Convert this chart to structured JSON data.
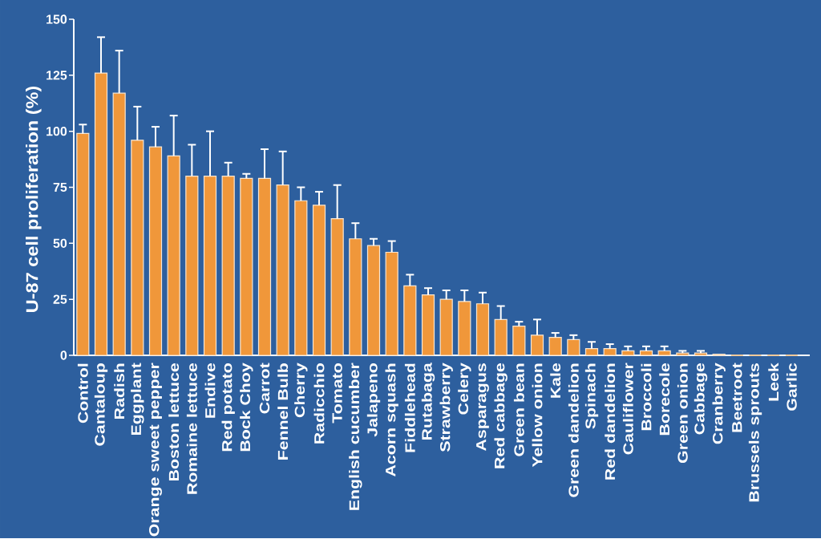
{
  "chart_data": {
    "type": "bar",
    "ylabel": "U-87 cell proliferation (%)",
    "categories": [
      "Control",
      "Cantaloup",
      "Radish",
      "Eggplant",
      "Orange sweet pepper",
      "Boston lettuce",
      "Romaine lettuce",
      "Endive",
      "Red potato",
      "Bock Choy",
      "Carrot",
      "Fennel Bulb",
      "Cherry",
      "Radicchio",
      "Tomato",
      "English cucumber",
      "Jalapeno",
      "Acorn squash",
      "Fiddlehead",
      "Rutabaga",
      "Strawberry",
      "Celery",
      "Asparagus",
      "Red cabbage",
      "Green bean",
      "Yellow onion",
      "Kale",
      "Green dandelion",
      "Spinach",
      "Red dandelion",
      "Cauliflower",
      "Broccoli",
      "Borecole",
      "Green onion",
      "Cabbage",
      "Cranberry",
      "Beetroot",
      "Brussels sprouts",
      "Leek",
      "Garlic"
    ],
    "values": [
      99,
      126,
      117,
      96,
      93,
      89,
      80,
      80,
      80,
      79,
      79,
      76,
      69,
      67,
      61,
      52,
      49,
      46,
      31,
      27,
      25,
      24,
      23,
      16,
      13,
      9,
      8,
      7,
      3,
      3,
      2,
      2,
      2,
      1,
      1,
      0.5,
      0,
      0,
      0,
      0
    ],
    "errors": [
      [
        99,
        103
      ],
      [
        126,
        142
      ],
      [
        117,
        136
      ],
      [
        96,
        111
      ],
      [
        93,
        102
      ],
      [
        89,
        107
      ],
      [
        80,
        94
      ],
      [
        80,
        100
      ],
      [
        80,
        86
      ],
      [
        79,
        81
      ],
      [
        79,
        92
      ],
      [
        76,
        91
      ],
      [
        69,
        75
      ],
      [
        67,
        73
      ],
      [
        61,
        76
      ],
      [
        52,
        59
      ],
      [
        49,
        52
      ],
      [
        46,
        51
      ],
      [
        31,
        36
      ],
      [
        27,
        30
      ],
      [
        25,
        29
      ],
      [
        24,
        29
      ],
      [
        23,
        28
      ],
      [
        16,
        22
      ],
      [
        13,
        15
      ],
      [
        9,
        16
      ],
      [
        8,
        10
      ],
      [
        7,
        9
      ],
      [
        3,
        6
      ],
      [
        3,
        5
      ],
      [
        2,
        4
      ],
      [
        2,
        4
      ],
      [
        2,
        4
      ],
      [
        1,
        2
      ],
      [
        1,
        2
      ],
      null,
      null,
      null,
      null,
      null
    ],
    "color": "#f0973a",
    "ylim": [
      0,
      150
    ],
    "yticks": [
      0,
      25,
      50,
      75,
      100,
      125,
      150
    ]
  }
}
